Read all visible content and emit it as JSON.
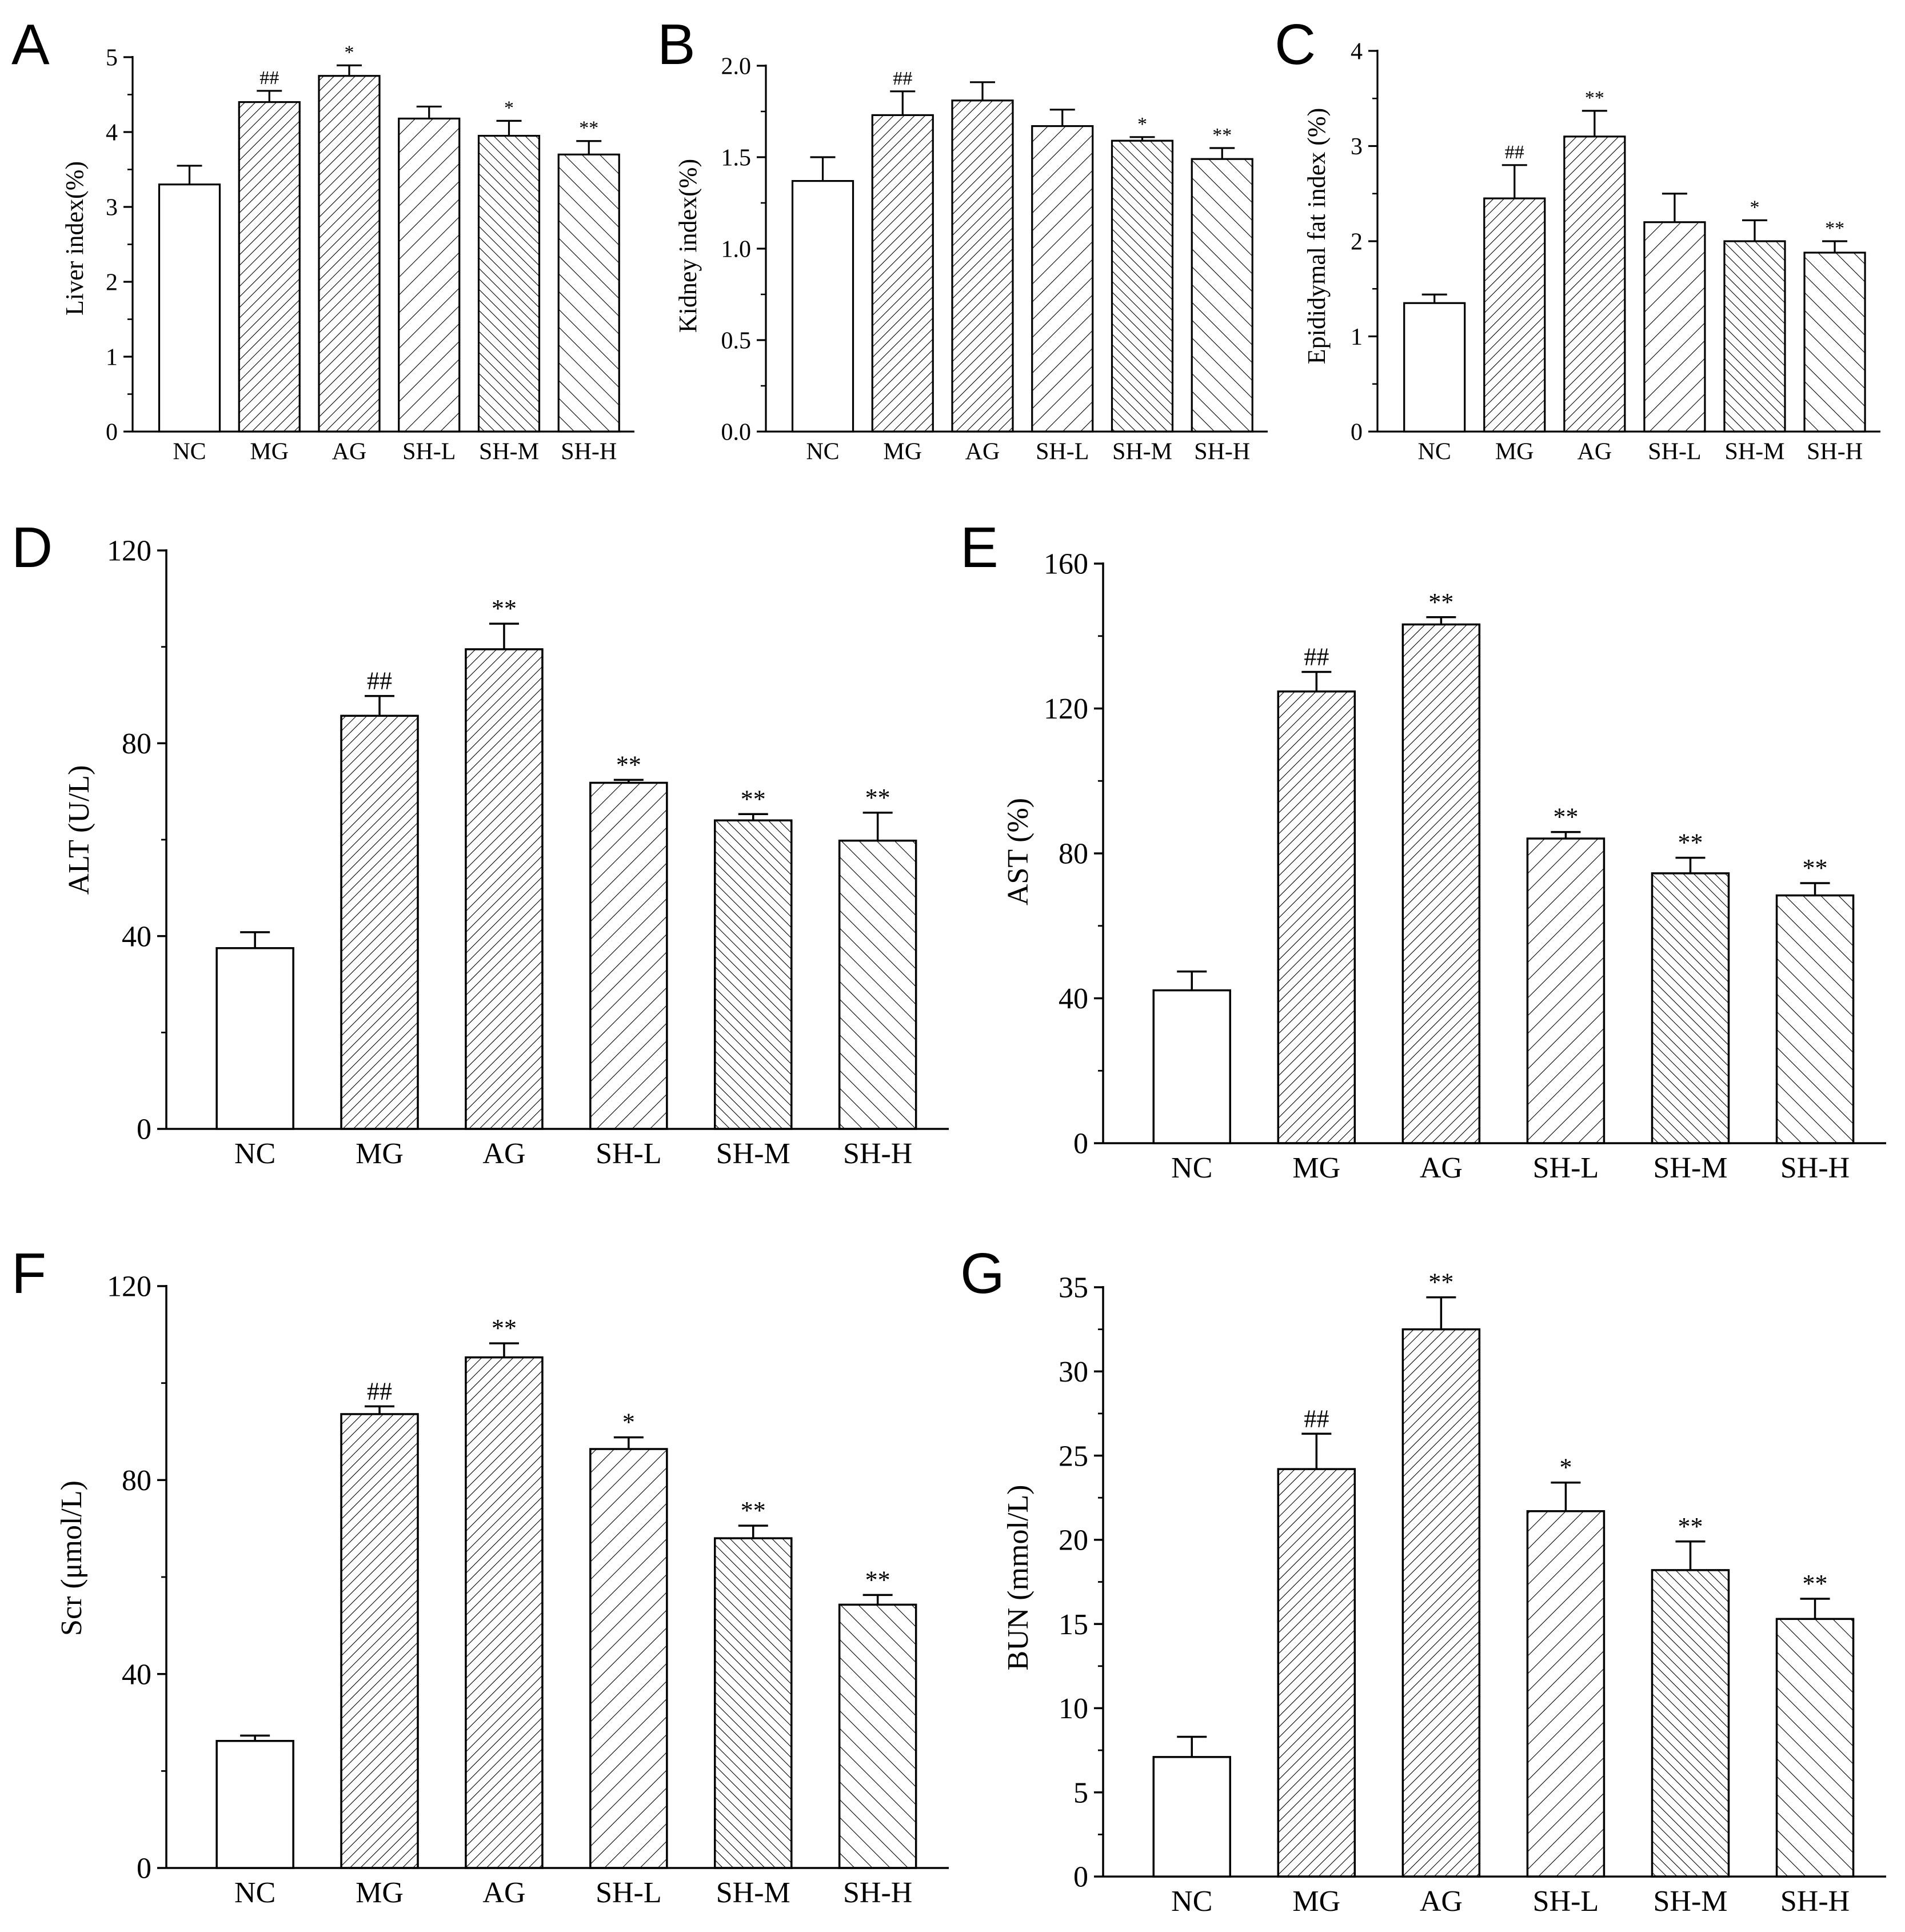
{
  "figure": {
    "background": "#ffffff",
    "ink": "#000000"
  },
  "chart_data": [
    {
      "panel": "A",
      "type": "bar",
      "categories": [
        "NC",
        "MG",
        "AG",
        "SH-L",
        "SH-M",
        "SH-H"
      ],
      "values": [
        3.3,
        4.4,
        4.75,
        4.18,
        3.95,
        3.7
      ],
      "errors": [
        0.25,
        0.15,
        0.14,
        0.16,
        0.2,
        0.18
      ],
      "significance": [
        "",
        "##",
        "*",
        "",
        "*",
        "**"
      ],
      "ylabel": "Liver index(%)",
      "ylim": [
        0,
        5
      ],
      "yticks": [
        0,
        1,
        2,
        3,
        4,
        5
      ],
      "ytick_labels": [
        "0",
        "1",
        "2",
        "3",
        "4",
        "5"
      ],
      "patterns": [
        "none",
        "fwd-dense",
        "fwd-dense",
        "fwd-sparse",
        "back-dense",
        "back-sparse"
      ]
    },
    {
      "panel": "B",
      "type": "bar",
      "categories": [
        "NC",
        "MG",
        "AG",
        "SH-L",
        "SH-M",
        "SH-H"
      ],
      "values": [
        1.37,
        1.73,
        1.81,
        1.67,
        1.59,
        1.49
      ],
      "errors": [
        0.13,
        0.13,
        0.1,
        0.09,
        0.02,
        0.06
      ],
      "significance": [
        "",
        "##",
        "",
        "",
        "*",
        "**"
      ],
      "ylabel": "Kidney index(%)",
      "ylim": [
        0,
        2.0
      ],
      "yticks": [
        0,
        0.5,
        1.0,
        1.5,
        2.0
      ],
      "ytick_labels": [
        "0.0",
        "0.5",
        "1.0",
        "1.5",
        "2.0"
      ],
      "patterns": [
        "none",
        "fwd-dense",
        "fwd-dense",
        "fwd-sparse",
        "back-dense",
        "back-sparse"
      ]
    },
    {
      "panel": "C",
      "type": "bar",
      "categories": [
        "NC",
        "MG",
        "AG",
        "SH-L",
        "SH-M",
        "SH-H"
      ],
      "values": [
        1.35,
        2.45,
        3.1,
        2.2,
        2.0,
        1.88
      ],
      "errors": [
        0.09,
        0.35,
        0.27,
        0.3,
        0.22,
        0.12
      ],
      "significance": [
        "",
        "##",
        "**",
        "",
        "*",
        "**"
      ],
      "ylabel": "Epididymal fat index (%)",
      "ylim": [
        0,
        4
      ],
      "yticks": [
        0,
        1,
        2,
        3,
        4
      ],
      "ytick_labels": [
        "0",
        "1",
        "2",
        "3",
        "4"
      ],
      "patterns": [
        "none",
        "fwd-dense",
        "fwd-dense",
        "fwd-sparse",
        "back-dense",
        "back-sparse"
      ]
    },
    {
      "panel": "D",
      "type": "bar",
      "categories": [
        "NC",
        "MG",
        "AG",
        "SH-L",
        "SH-M",
        "SH-H"
      ],
      "values": [
        37.5,
        85.7,
        99.5,
        71.8,
        64.0,
        59.8
      ],
      "errors": [
        3.3,
        4.1,
        5.3,
        0.6,
        1.3,
        5.8
      ],
      "significance": [
        "",
        "##",
        "**",
        "**",
        "**",
        "**"
      ],
      "ylabel": "ALT (U/L)",
      "ylim": [
        0,
        120
      ],
      "yticks": [
        0,
        40,
        80,
        120
      ],
      "ytick_labels": [
        "0",
        "40",
        "80",
        "120"
      ],
      "patterns": [
        "none",
        "fwd-dense",
        "fwd-dense",
        "fwd-sparse",
        "back-dense",
        "back-sparse"
      ]
    },
    {
      "panel": "E",
      "type": "bar",
      "categories": [
        "NC",
        "MG",
        "AG",
        "SH-L",
        "SH-M",
        "SH-H"
      ],
      "values": [
        42.2,
        124.7,
        143.2,
        84.1,
        74.5,
        68.4
      ],
      "errors": [
        5.2,
        5.4,
        2.0,
        1.8,
        4.3,
        3.4
      ],
      "significance": [
        "",
        "##",
        "**",
        "**",
        "**",
        "**"
      ],
      "ylabel": "AST (%)",
      "ylim": [
        0,
        160
      ],
      "yticks": [
        0,
        40,
        80,
        120,
        160
      ],
      "ytick_labels": [
        "0",
        "40",
        "80",
        "120",
        "160"
      ],
      "patterns": [
        "none",
        "fwd-dense",
        "fwd-dense",
        "fwd-sparse",
        "back-dense",
        "back-sparse"
      ]
    },
    {
      "panel": "F",
      "type": "bar",
      "categories": [
        "NC",
        "MG",
        "AG",
        "SH-L",
        "SH-M",
        "SH-H"
      ],
      "values": [
        26.2,
        93.6,
        105.3,
        86.4,
        68.0,
        54.3
      ],
      "errors": [
        1.1,
        1.6,
        2.9,
        2.4,
        2.6,
        2.0
      ],
      "significance": [
        "",
        "##",
        "**",
        "*",
        "**",
        "**"
      ],
      "ylabel": "Scr (μmol/L)",
      "ylim": [
        0,
        120
      ],
      "yticks": [
        0,
        40,
        80,
        120
      ],
      "ytick_labels": [
        "0",
        "40",
        "80",
        "120"
      ],
      "patterns": [
        "none",
        "fwd-dense",
        "fwd-dense",
        "fwd-sparse",
        "back-dense",
        "back-sparse"
      ]
    },
    {
      "panel": "G",
      "type": "bar",
      "categories": [
        "NC",
        "MG",
        "AG",
        "SH-L",
        "SH-M",
        "SH-H"
      ],
      "values": [
        7.1,
        24.2,
        32.5,
        21.7,
        18.2,
        15.3
      ],
      "errors": [
        1.2,
        2.1,
        1.9,
        1.7,
        1.7,
        1.2
      ],
      "significance": [
        "",
        "##",
        "**",
        "*",
        "**",
        "**"
      ],
      "ylabel": "BUN (mmol/L)",
      "ylim": [
        0,
        35
      ],
      "yticks": [
        0,
        5,
        10,
        15,
        20,
        25,
        30,
        35
      ],
      "ytick_labels": [
        "0",
        "5",
        "10",
        "15",
        "20",
        "25",
        "30",
        "35"
      ],
      "patterns": [
        "none",
        "fwd-dense",
        "fwd-dense",
        "fwd-sparse",
        "back-dense",
        "back-sparse"
      ]
    }
  ]
}
